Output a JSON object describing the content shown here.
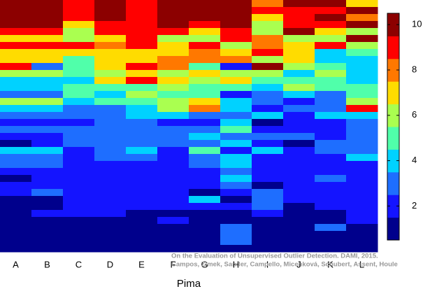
{
  "chart_data": {
    "type": "heatmap",
    "categories": [
      "A",
      "B",
      "C",
      "D",
      "E",
      "F",
      "G",
      "H",
      "I",
      "J",
      "K",
      "L"
    ],
    "xlabel": "Pima",
    "annotation": [
      "On the Evaluation of Unsupervised Outlier Detection. DAMI, 2015.",
      "Campos, Zimek, Sander, Campello, Micenková, Schubert, Assent, Houle"
    ],
    "colors": [
      "#00008c",
      "#1414ff",
      "#1e6eff",
      "#00d2ff",
      "#50ffaa",
      "#aaff50",
      "#ffdc00",
      "#ff7800",
      "#ff0000",
      "#8c0000"
    ],
    "clim": [
      0.5,
      10.5
    ],
    "cticks": [
      2,
      4,
      6,
      8,
      10
    ],
    "z": [
      [
        10,
        10,
        9,
        10,
        9,
        10,
        10,
        10,
        8,
        10,
        10,
        7
      ],
      [
        10,
        10,
        9,
        10,
        9,
        10,
        10,
        10,
        9,
        9,
        9,
        10
      ],
      [
        10,
        10,
        9,
        10,
        9,
        10,
        10,
        10,
        7,
        9,
        10,
        8
      ],
      [
        10,
        10,
        7,
        9,
        9,
        10,
        9,
        10,
        6,
        9,
        9,
        10
      ],
      [
        9,
        9,
        6,
        9,
        9,
        9,
        7,
        9,
        6,
        10,
        7,
        6
      ],
      [
        7,
        7,
        6,
        7,
        9,
        6,
        6,
        9,
        8,
        6,
        6,
        10
      ],
      [
        9,
        9,
        9,
        8,
        9,
        7,
        9,
        6,
        8,
        7,
        9,
        6
      ],
      [
        7,
        7,
        7,
        7,
        7,
        7,
        8,
        7,
        9,
        7,
        4,
        5
      ],
      [
        7,
        7,
        5,
        7,
        7,
        8,
        8,
        8,
        6,
        7,
        4,
        4
      ],
      [
        9,
        3,
        5,
        7,
        9,
        8,
        5,
        2,
        10,
        6,
        5,
        4
      ],
      [
        6,
        6,
        5,
        6,
        7,
        6,
        7,
        6,
        6,
        4,
        6,
        4
      ],
      [
        4,
        4,
        4,
        7,
        9,
        7,
        6,
        7,
        5,
        5,
        5,
        4
      ],
      [
        4,
        4,
        5,
        5,
        5,
        6,
        5,
        5,
        4,
        6,
        5,
        5
      ],
      [
        3,
        3,
        5,
        4,
        6,
        5,
        5,
        2,
        3,
        4,
        3,
        5
      ],
      [
        6,
        6,
        4,
        5,
        5,
        6,
        7,
        4,
        3,
        2,
        3,
        6
      ],
      [
        4,
        4,
        3,
        3,
        4,
        6,
        8,
        4,
        2,
        3,
        3,
        9
      ],
      [
        3,
        3,
        3,
        3,
        4,
        4,
        3,
        3,
        4,
        2,
        4,
        4
      ],
      [
        2,
        2,
        2,
        3,
        3,
        2,
        2,
        4,
        1,
        2,
        2,
        3
      ],
      [
        3,
        3,
        3,
        3,
        3,
        3,
        3,
        5,
        2,
        2,
        2,
        3
      ],
      [
        2,
        2,
        3,
        3,
        3,
        3,
        4,
        3,
        3,
        3,
        2,
        3
      ],
      [
        1,
        2,
        3,
        3,
        3,
        3,
        3,
        4,
        2,
        1,
        3,
        3
      ],
      [
        4,
        4,
        2,
        3,
        4,
        2,
        5,
        2,
        4,
        2,
        3,
        3
      ],
      [
        3,
        3,
        2,
        3,
        3,
        2,
        3,
        4,
        2,
        2,
        2,
        4
      ],
      [
        3,
        3,
        2,
        2,
        2,
        2,
        3,
        4,
        2,
        2,
        2,
        2
      ],
      [
        2,
        2,
        2,
        2,
        2,
        2,
        2,
        3,
        2,
        2,
        2,
        2
      ],
      [
        1,
        2,
        2,
        2,
        2,
        2,
        2,
        4,
        2,
        2,
        3,
        2
      ],
      [
        2,
        2,
        2,
        2,
        2,
        2,
        2,
        3,
        1,
        2,
        2,
        2
      ],
      [
        2,
        3,
        2,
        2,
        2,
        2,
        1,
        2,
        3,
        2,
        2,
        2
      ],
      [
        1,
        1,
        2,
        2,
        2,
        2,
        4,
        1,
        3,
        2,
        2,
        2
      ],
      [
        1,
        1,
        2,
        2,
        2,
        2,
        2,
        2,
        3,
        1,
        2,
        2
      ],
      [
        1,
        2,
        2,
        2,
        1,
        1,
        1,
        1,
        2,
        1,
        1,
        2
      ],
      [
        1,
        1,
        1,
        1,
        1,
        2,
        1,
        1,
        1,
        1,
        1,
        2
      ],
      [
        1,
        1,
        1,
        1,
        1,
        1,
        1,
        3,
        1,
        1,
        3,
        1
      ],
      [
        1,
        1,
        1,
        1,
        1,
        1,
        1,
        3,
        1,
        1,
        1,
        1
      ],
      [
        1,
        1,
        1,
        1,
        1,
        1,
        1,
        3,
        1,
        1,
        1,
        1
      ],
      [
        1,
        1,
        1,
        1,
        1,
        1,
        1,
        1,
        1,
        1,
        1,
        1
      ]
    ]
  }
}
